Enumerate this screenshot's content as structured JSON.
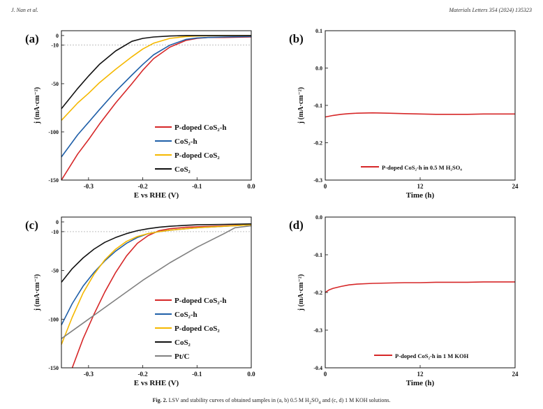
{
  "page_header": {
    "left": "J. Nan et al.",
    "right": "Materials Letters 354 (2024) 135323"
  },
  "caption": {
    "label": "Fig. 2.",
    "text_parts": [
      "LSV and stability curves of obtained samples in (a, b) 0.5 M H",
      "2",
      "SO",
      "4",
      " and (c, d) 1 M KOH solutions."
    ]
  },
  "chart_data": [
    {
      "panel": "(a)",
      "type": "line",
      "xlabel": "E vs RHE (V)",
      "ylabel": "j (mA·cm⁻²)",
      "xlim": [
        -0.35,
        0.0
      ],
      "ylim": [
        -150,
        5
      ],
      "xticks": [
        -0.3,
        -0.2,
        -0.1,
        0.0
      ],
      "xtick_labels": [
        "-0.3",
        "-0.2",
        "-0.1",
        "0.0"
      ],
      "yticks": [
        0,
        -10,
        -50,
        -100,
        -150
      ],
      "ytick_labels": [
        "0",
        "-10",
        "-50",
        "-100",
        "-150"
      ],
      "reference_line": -10,
      "legend_position": "bottom-right",
      "series": [
        {
          "name": "P-doped CoS₂-h",
          "color": "#d62728",
          "x": [
            -0.35,
            -0.32,
            -0.3,
            -0.28,
            -0.25,
            -0.22,
            -0.2,
            -0.18,
            -0.15,
            -0.12,
            -0.1,
            -0.08,
            -0.05,
            0.0
          ],
          "y": [
            -150,
            -123,
            -108,
            -92,
            -70,
            -50,
            -36,
            -24,
            -12,
            -5,
            -3,
            -2,
            -2,
            -1.5
          ]
        },
        {
          "name": "CoS₂-h",
          "color": "#1f5fa8",
          "x": [
            -0.35,
            -0.32,
            -0.3,
            -0.28,
            -0.25,
            -0.22,
            -0.2,
            -0.18,
            -0.15,
            -0.12,
            -0.1,
            -0.08,
            -0.05,
            0.0
          ],
          "y": [
            -126,
            -103,
            -90,
            -77,
            -58,
            -41,
            -30,
            -20,
            -10,
            -4,
            -2.5,
            -2,
            -1.5,
            -1
          ]
        },
        {
          "name": "P-doped CoS₂",
          "color": "#f5b800",
          "x": [
            -0.35,
            -0.32,
            -0.3,
            -0.28,
            -0.25,
            -0.22,
            -0.2,
            -0.18,
            -0.15,
            -0.12,
            -0.1,
            -0.05,
            0.0
          ],
          "y": [
            -88,
            -70,
            -60,
            -49,
            -35,
            -22,
            -14,
            -8,
            -3,
            -1,
            -0.5,
            0,
            0
          ]
        },
        {
          "name": "CoS₂",
          "color": "#111111",
          "x": [
            -0.35,
            -0.32,
            -0.3,
            -0.28,
            -0.25,
            -0.22,
            -0.2,
            -0.18,
            -0.15,
            -0.12,
            -0.1,
            -0.05,
            0.0
          ],
          "y": [
            -76,
            -55,
            -42,
            -30,
            -16,
            -6,
            -3,
            -1.5,
            -0.5,
            0,
            0,
            0,
            0
          ]
        }
      ]
    },
    {
      "panel": "(b)",
      "type": "line",
      "xlabel": "Time (h)",
      "ylabel": "j (mA·cm⁻²)",
      "xlim": [
        0,
        24
      ],
      "ylim": [
        -0.3,
        0.1
      ],
      "xticks": [
        0,
        12,
        24
      ],
      "xtick_labels": [
        "0",
        "12",
        "24"
      ],
      "yticks": [
        0.1,
        0.0,
        -0.1,
        -0.2,
        -0.3
      ],
      "ytick_labels": [
        "0.1",
        "0.0",
        "-0.1",
        "-0.2",
        "-0.3"
      ],
      "legend_position": "bottom-right",
      "series": [
        {
          "name": "P-doped CoS₂-h in 0.5 M H₂SO₄",
          "color": "#d62728",
          "x": [
            0,
            1,
            2,
            3,
            4,
            6,
            8,
            10,
            12,
            14,
            16,
            18,
            20,
            22,
            24
          ],
          "y": [
            -0.131,
            -0.127,
            -0.124,
            -0.122,
            -0.121,
            -0.12,
            -0.121,
            -0.122,
            -0.123,
            -0.124,
            -0.124,
            -0.124,
            -0.123,
            -0.123,
            -0.123
          ]
        }
      ]
    },
    {
      "panel": "(c)",
      "type": "line",
      "xlabel": "E vs RHE (V)",
      "ylabel": "j (mA·cm⁻²)",
      "xlim": [
        -0.35,
        0.0
      ],
      "ylim": [
        -150,
        5
      ],
      "xticks": [
        -0.3,
        -0.2,
        -0.1,
        0.0
      ],
      "xtick_labels": [
        "-0.3",
        "-0.2",
        "-0.1",
        "0.0"
      ],
      "yticks": [
        0,
        -10,
        -50,
        -100,
        -150
      ],
      "ytick_labels": [
        "0",
        "-10",
        "-50",
        "-100",
        "-150"
      ],
      "reference_line": -10,
      "legend_position": "bottom-right",
      "series": [
        {
          "name": "P-doped CoS₂-h",
          "color": "#d62728",
          "x": [
            -0.33,
            -0.31,
            -0.29,
            -0.27,
            -0.25,
            -0.23,
            -0.21,
            -0.19,
            -0.17,
            -0.15,
            -0.12,
            -0.1,
            -0.05,
            0.0
          ],
          "y": [
            -150,
            -120,
            -95,
            -72,
            -52,
            -35,
            -22,
            -14,
            -9,
            -7,
            -5.5,
            -5,
            -4,
            -3
          ]
        },
        {
          "name": "CoS₂-h",
          "color": "#1f5fa8",
          "x": [
            -0.35,
            -0.33,
            -0.31,
            -0.29,
            -0.27,
            -0.25,
            -0.23,
            -0.21,
            -0.19,
            -0.17,
            -0.15,
            -0.12,
            -0.1,
            -0.05,
            0.0
          ],
          "y": [
            -106,
            -84,
            -66,
            -52,
            -40,
            -30,
            -22,
            -16,
            -12,
            -10,
            -8.5,
            -7,
            -6,
            -4.5,
            -3
          ]
        },
        {
          "name": "P-doped CoS₂",
          "color": "#f5b800",
          "x": [
            -0.35,
            -0.33,
            -0.31,
            -0.29,
            -0.27,
            -0.25,
            -0.23,
            -0.21,
            -0.19,
            -0.17,
            -0.15,
            -0.12,
            -0.1,
            -0.05,
            0.0
          ],
          "y": [
            -126,
            -98,
            -73,
            -54,
            -39,
            -28,
            -20,
            -15,
            -12,
            -10,
            -8.5,
            -7,
            -6,
            -4.5,
            -3
          ]
        },
        {
          "name": "CoS₂",
          "color": "#111111",
          "x": [
            -0.35,
            -0.33,
            -0.31,
            -0.29,
            -0.27,
            -0.25,
            -0.23,
            -0.21,
            -0.19,
            -0.17,
            -0.15,
            -0.12,
            -0.1,
            -0.05,
            0.0
          ],
          "y": [
            -62,
            -48,
            -37,
            -28,
            -21,
            -16,
            -12,
            -9,
            -7,
            -5.5,
            -4.5,
            -3.5,
            -3,
            -2.5,
            -2
          ]
        },
        {
          "name": "Pt/C",
          "color": "#808080",
          "x": [
            -0.35,
            -0.3,
            -0.25,
            -0.2,
            -0.15,
            -0.1,
            -0.05,
            -0.03,
            0.0
          ],
          "y": [
            -120,
            -100,
            -80,
            -60,
            -42,
            -26,
            -12,
            -6,
            -4
          ]
        }
      ]
    },
    {
      "panel": "(d)",
      "type": "line",
      "xlabel": "Time (h)",
      "ylabel": "j (mA·cm⁻²)",
      "xlim": [
        0,
        24
      ],
      "ylim": [
        -0.4,
        0.0
      ],
      "xticks": [
        0,
        12,
        24
      ],
      "xtick_labels": [
        "0",
        "12",
        "24"
      ],
      "yticks": [
        0.0,
        -0.1,
        -0.2,
        -0.3,
        -0.4
      ],
      "ytick_labels": [
        "0.0",
        "-0.1",
        "-0.2",
        "-0.3",
        "-0.4"
      ],
      "legend_position": "bottom-right",
      "series": [
        {
          "name": "P-doped CoS₂-h in 1 M KOH",
          "color": "#d62728",
          "x": [
            0,
            0.5,
            1,
            2,
            3,
            4,
            6,
            8,
            10,
            12,
            14,
            16,
            18,
            20,
            22,
            24
          ],
          "y": [
            -0.2,
            -0.193,
            -0.189,
            -0.184,
            -0.18,
            -0.178,
            -0.176,
            -0.175,
            -0.174,
            -0.174,
            -0.173,
            -0.173,
            -0.173,
            -0.172,
            -0.172,
            -0.172
          ]
        }
      ]
    }
  ]
}
